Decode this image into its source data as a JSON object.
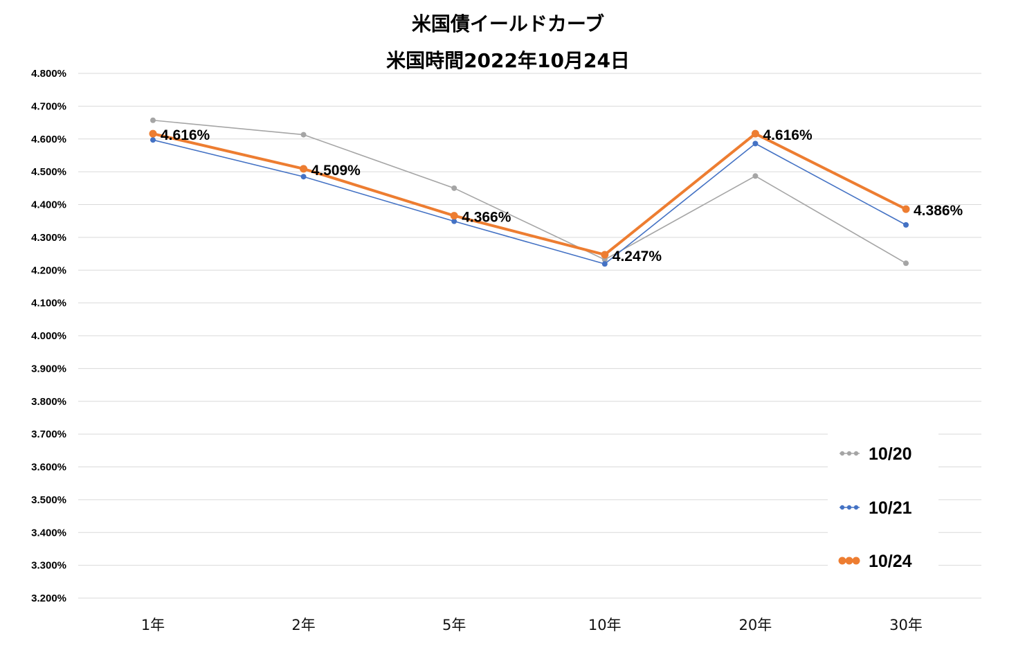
{
  "chart_data": {
    "type": "line",
    "title": "米国債イールドカーブ",
    "subtitle": "米国時間2022年10月24日",
    "categories": [
      "1年",
      "2年",
      "5年",
      "10年",
      "20年",
      "30年"
    ],
    "ylim": [
      3.2,
      4.8
    ],
    "yticks": [
      "4.800%",
      "4.700%",
      "4.600%",
      "4.500%",
      "4.400%",
      "4.300%",
      "4.200%",
      "4.100%",
      "4.000%",
      "3.900%",
      "3.800%",
      "3.700%",
      "3.600%",
      "3.500%",
      "3.400%",
      "3.300%",
      "3.200%"
    ],
    "grid": true,
    "legend": "right",
    "series": [
      {
        "name": "10/20",
        "color": "#a5a5a5",
        "values": [
          4.657,
          4.613,
          4.45,
          4.232,
          4.487,
          4.221
        ]
      },
      {
        "name": "10/21",
        "color": "#4472c4",
        "values": [
          4.597,
          4.485,
          4.349,
          4.219,
          4.586,
          4.338
        ]
      },
      {
        "name": "10/24",
        "color": "#ed7d31",
        "values": [
          4.616,
          4.509,
          4.366,
          4.247,
          4.616,
          4.386
        ],
        "data_labels": [
          "4.616%",
          "4.509%",
          "4.366%",
          "4.247%",
          "4.616%",
          "4.386%"
        ]
      }
    ]
  }
}
